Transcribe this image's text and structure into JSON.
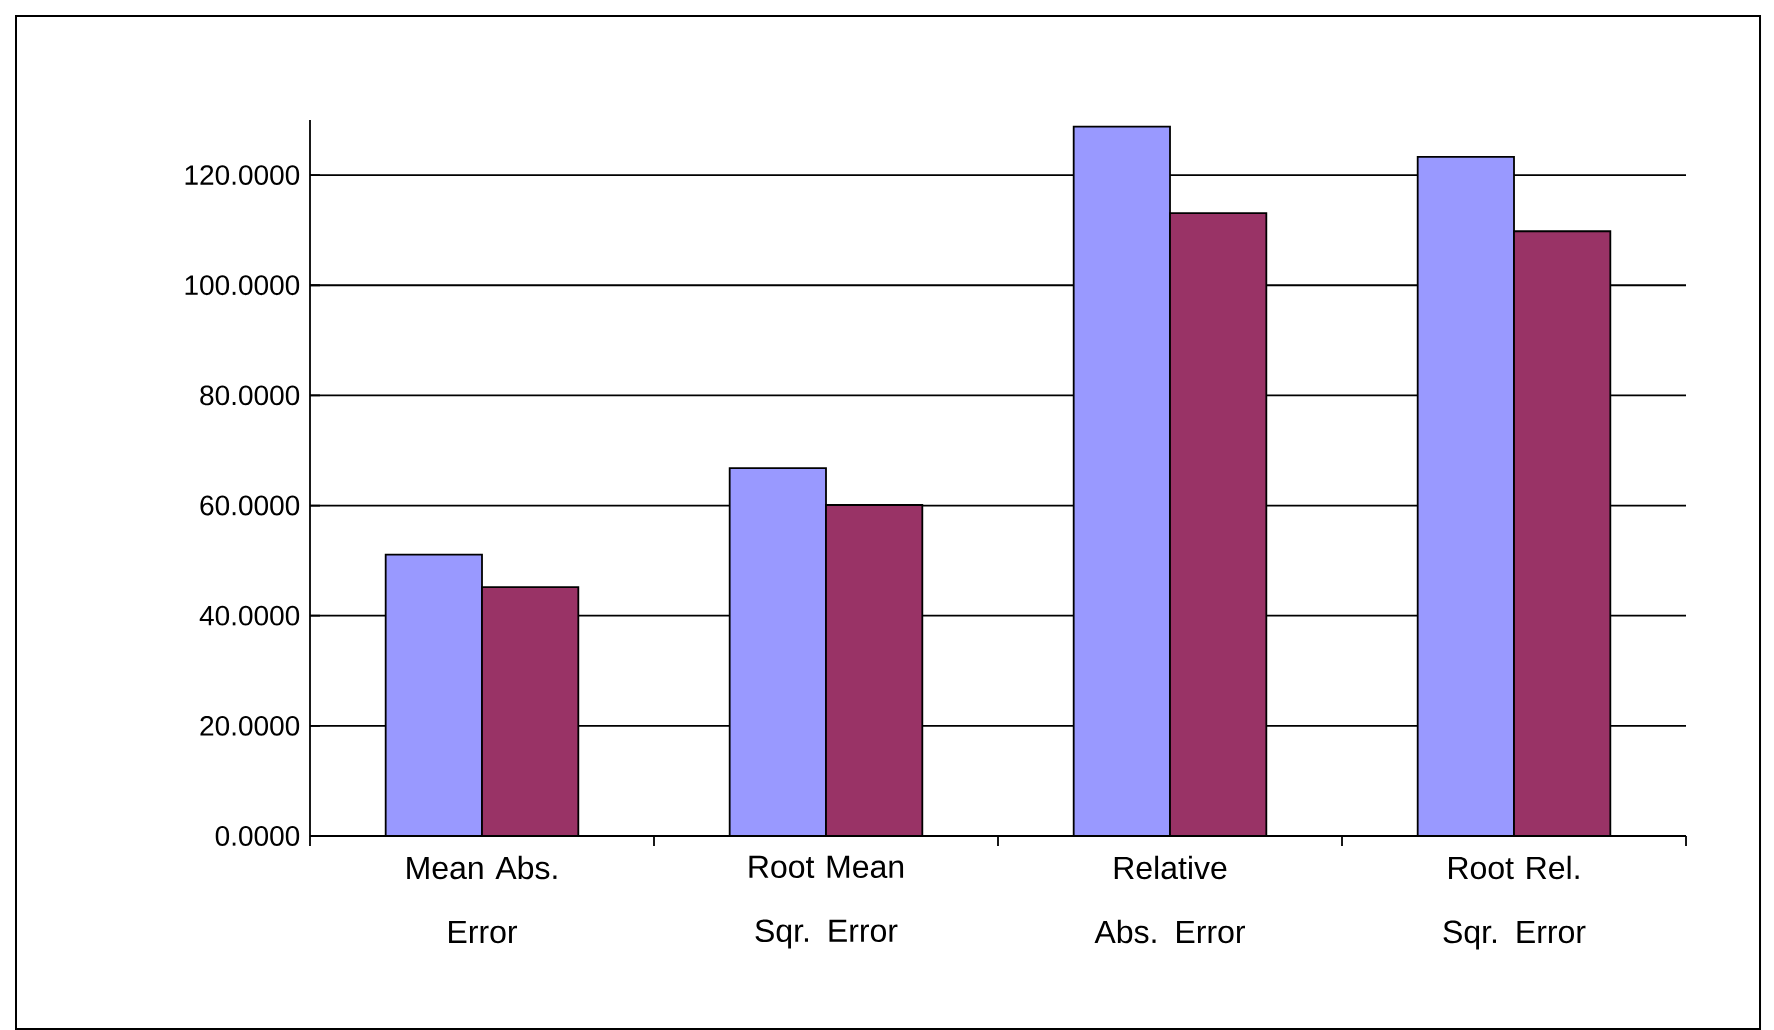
{
  "chart_data": {
    "type": "bar",
    "categories": [
      "Mean Abs. Error",
      "Root Mean Sqr. Error",
      "Relative Abs. Error",
      "Root Rel. Sqr. Error"
    ],
    "series": [
      {
        "color": "#9999ff",
        "values": [
          51.1,
          66.8,
          128.8,
          123.3
        ]
      },
      {
        "color": "#993366",
        "values": [
          45.2,
          60.1,
          113.1,
          109.8
        ]
      }
    ],
    "ylim": [
      0,
      130
    ],
    "yticks": [
      {
        "value": 0,
        "label": "0.0000"
      },
      {
        "value": 20,
        "label": "20.0000"
      },
      {
        "value": 40,
        "label": "40.0000"
      },
      {
        "value": 60,
        "label": "60.0000"
      },
      {
        "value": 80,
        "label": "80.0000"
      },
      {
        "value": 100,
        "label": "100.0000"
      },
      {
        "value": 120,
        "label": "120.0000"
      }
    ],
    "grid": "y"
  }
}
